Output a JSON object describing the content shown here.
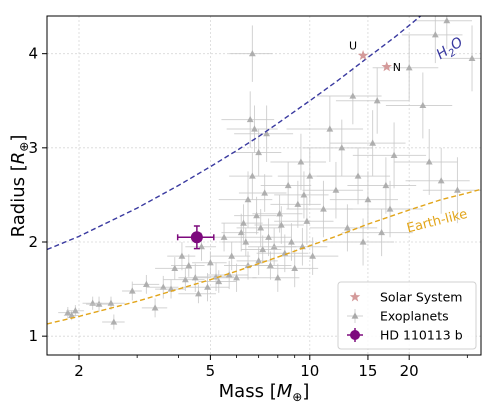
{
  "chart_data": {
    "type": "scatter",
    "x_axis": {
      "label": "Mass [M⊕]",
      "scale": "log",
      "range": [
        1.6,
        33
      ],
      "ticks": [
        2,
        5,
        10,
        15,
        20
      ],
      "tick_labels": [
        "2",
        "5",
        "10",
        "15",
        "20"
      ]
    },
    "y_axis": {
      "label": "Radius [R⊕]",
      "scale": "linear",
      "range": [
        0.8,
        4.4
      ],
      "ticks": [
        1,
        2,
        3,
        4
      ],
      "tick_labels": [
        "1",
        "2",
        "3",
        "4"
      ]
    },
    "grid": true,
    "legend": {
      "placement": "bottom-right",
      "entries": [
        {
          "label": "Solar System",
          "marker": "star",
          "color": "#d49a9a"
        },
        {
          "label": "Exoplanets",
          "marker": "triangle",
          "color": "#a9a9a9"
        },
        {
          "label": "HD 110113 b",
          "marker": "circle-errorbar",
          "color": "#7d0a7d"
        }
      ]
    },
    "curves": [
      {
        "label": "H2O",
        "label_main": "H",
        "label_sub": "2",
        "label_end": "O",
        "color": "#3a3aa0",
        "style": "dashed",
        "points": [
          [
            1.6,
            1.92
          ],
          [
            2,
            2.06
          ],
          [
            3,
            2.36
          ],
          [
            4,
            2.6
          ],
          [
            5,
            2.8
          ],
          [
            6,
            2.97
          ],
          [
            7,
            3.12
          ],
          [
            8,
            3.26
          ],
          [
            10,
            3.5
          ],
          [
            12,
            3.7
          ],
          [
            15,
            3.96
          ],
          [
            18,
            4.17
          ],
          [
            20,
            4.3
          ],
          [
            22,
            4.42
          ]
        ]
      },
      {
        "label": "Earth-like",
        "color": "#e2a51a",
        "style": "dashed",
        "points": [
          [
            1.6,
            1.13
          ],
          [
            2,
            1.21
          ],
          [
            3,
            1.37
          ],
          [
            4,
            1.5
          ],
          [
            5,
            1.6
          ],
          [
            6,
            1.69
          ],
          [
            7,
            1.77
          ],
          [
            8,
            1.84
          ],
          [
            10,
            1.96
          ],
          [
            12,
            2.06
          ],
          [
            15,
            2.19
          ],
          [
            20,
            2.34
          ],
          [
            25,
            2.45
          ],
          [
            30,
            2.52
          ],
          [
            33,
            2.56
          ]
        ]
      }
    ],
    "solar_system": [
      {
        "label": "U",
        "mass": 14.5,
        "radius": 3.98
      },
      {
        "label": "N",
        "mass": 17.1,
        "radius": 3.86
      }
    ],
    "highlight": {
      "label": "HD 110113 b",
      "mass": 4.55,
      "radius": 2.05,
      "mass_err": 0.57,
      "radius_err": 0.12,
      "color": "#7d0a7d"
    },
    "exoplanets": [
      [
        1.85,
        1.25,
        0.12,
        0.06
      ],
      [
        1.9,
        1.22,
        0.1,
        0.05
      ],
      [
        1.95,
        1.27,
        0.12,
        0.06
      ],
      [
        2.2,
        1.35,
        0.15,
        0.07
      ],
      [
        2.3,
        1.34,
        0.2,
        0.08
      ],
      [
        2.5,
        1.35,
        0.25,
        0.07
      ],
      [
        2.55,
        1.15,
        0.2,
        0.08
      ],
      [
        2.9,
        1.48,
        0.2,
        0.1
      ],
      [
        3.2,
        1.55,
        0.3,
        0.1
      ],
      [
        3.4,
        1.3,
        0.3,
        0.1
      ],
      [
        3.6,
        1.52,
        0.4,
        0.12
      ],
      [
        3.8,
        1.5,
        0.4,
        0.1
      ],
      [
        3.9,
        1.72,
        0.5,
        0.12
      ],
      [
        4.1,
        1.85,
        0.4,
        0.15
      ],
      [
        4.2,
        1.6,
        0.6,
        0.12
      ],
      [
        4.3,
        1.75,
        0.5,
        0.12
      ],
      [
        4.5,
        1.62,
        0.5,
        0.15
      ],
      [
        4.6,
        1.45,
        0.6,
        0.1
      ],
      [
        4.7,
        1.95,
        0.5,
        0.15
      ],
      [
        4.9,
        1.52,
        0.8,
        0.15
      ],
      [
        5.0,
        1.78,
        0.6,
        0.12
      ],
      [
        5.2,
        1.63,
        0.7,
        0.15
      ],
      [
        5.3,
        1.58,
        0.7,
        0.12
      ],
      [
        5.5,
        2.05,
        0.8,
        0.15
      ],
      [
        5.7,
        1.65,
        0.8,
        0.15
      ],
      [
        5.8,
        1.85,
        0.8,
        0.15
      ],
      [
        6.0,
        1.62,
        0.9,
        0.15
      ],
      [
        6.2,
        2.1,
        0.8,
        0.2
      ],
      [
        6.3,
        2.2,
        0.9,
        0.2
      ],
      [
        6.4,
        2.0,
        1.0,
        0.15
      ],
      [
        6.5,
        1.75,
        1.0,
        0.15
      ],
      [
        6.5,
        2.45,
        1.2,
        0.3
      ],
      [
        6.6,
        3.3,
        1.2,
        0.3
      ],
      [
        6.7,
        2.7,
        1.0,
        0.25
      ],
      [
        6.7,
        4.0,
        1.0,
        0.3
      ],
      [
        6.8,
        3.2,
        1.2,
        0.25
      ],
      [
        6.9,
        2.28,
        1.0,
        0.2
      ],
      [
        7.0,
        1.8,
        1.0,
        0.15
      ],
      [
        7.0,
        2.95,
        1.2,
        0.25
      ],
      [
        7.1,
        2.15,
        1.1,
        0.2
      ],
      [
        7.2,
        1.92,
        1.0,
        0.15
      ],
      [
        7.3,
        2.52,
        1.2,
        0.2
      ],
      [
        7.4,
        3.15,
        1.5,
        0.3
      ],
      [
        7.5,
        2.05,
        1.3,
        0.2
      ],
      [
        7.6,
        1.75,
        1.2,
        0.15
      ],
      [
        7.8,
        1.95,
        1.3,
        0.2
      ],
      [
        8.0,
        1.62,
        1.3,
        0.15
      ],
      [
        8.1,
        2.3,
        1.4,
        0.2
      ],
      [
        8.2,
        2.18,
        1.4,
        0.2
      ],
      [
        8.4,
        1.88,
        1.5,
        0.2
      ],
      [
        8.6,
        2.6,
        1.5,
        0.25
      ],
      [
        8.8,
        2.0,
        1.5,
        0.2
      ],
      [
        9.0,
        1.72,
        1.6,
        0.2
      ],
      [
        9.2,
        2.4,
        1.6,
        0.25
      ],
      [
        9.4,
        2.85,
        1.8,
        0.3
      ],
      [
        9.5,
        1.95,
        1.8,
        0.2
      ],
      [
        9.6,
        2.5,
        1.8,
        0.25
      ],
      [
        9.8,
        2.22,
        2.0,
        0.25
      ],
      [
        10.0,
        2.7,
        2.0,
        0.3
      ],
      [
        10.2,
        1.85,
        2.0,
        0.2
      ],
      [
        11.0,
        2.35,
        2.5,
        0.3
      ],
      [
        11.5,
        3.2,
        3.0,
        0.35
      ],
      [
        12.0,
        2.55,
        2.5,
        0.3
      ],
      [
        12.5,
        3.0,
        3.0,
        0.3
      ],
      [
        13.0,
        2.15,
        3.0,
        0.25
      ],
      [
        13.5,
        3.55,
        3.0,
        0.3
      ],
      [
        14.0,
        2.7,
        3.5,
        0.3
      ],
      [
        14.5,
        2.0,
        3.5,
        0.25
      ],
      [
        15.0,
        2.45,
        3.5,
        0.3
      ],
      [
        15.5,
        3.05,
        4.0,
        0.35
      ],
      [
        16.0,
        3.5,
        4.0,
        0.35
      ],
      [
        16.5,
        2.1,
        4.0,
        0.25
      ],
      [
        17.0,
        2.6,
        4.0,
        0.3
      ],
      [
        17.5,
        2.35,
        4.5,
        0.3
      ],
      [
        18.0,
        2.92,
        4.5,
        0.35
      ],
      [
        20.0,
        3.85,
        4.5,
        0.35
      ],
      [
        22.0,
        3.45,
        5.0,
        0.35
      ],
      [
        23.0,
        2.85,
        5.0,
        0.35
      ],
      [
        24.0,
        4.2,
        5.0,
        0.3
      ],
      [
        25.0,
        2.65,
        5.5,
        0.35
      ],
      [
        26.0,
        4.35,
        5.0,
        0.3
      ],
      [
        28.0,
        2.55,
        6.0,
        0.35
      ],
      [
        31.0,
        3.95,
        6.0,
        0.35
      ]
    ]
  }
}
